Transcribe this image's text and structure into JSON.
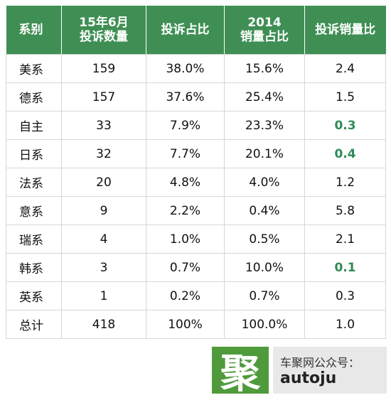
{
  "table": {
    "headers": [
      {
        "line1": "系别",
        "line2": ""
      },
      {
        "line1": "15年6月",
        "line2": "投诉数量"
      },
      {
        "line1": "投诉占比",
        "line2": ""
      },
      {
        "line1": "2014",
        "line2": "销量占比"
      },
      {
        "line1": "投诉销量比",
        "line2": ""
      }
    ],
    "rows": [
      {
        "name": "美系",
        "count": "159",
        "complaint_share": "38.0%",
        "sales_share": "15.6%",
        "ratio": "2.4",
        "highlight": false
      },
      {
        "name": "德系",
        "count": "157",
        "complaint_share": "37.6%",
        "sales_share": "25.4%",
        "ratio": "1.5",
        "highlight": false
      },
      {
        "name": "自主",
        "count": "33",
        "complaint_share": "7.9%",
        "sales_share": "23.3%",
        "ratio": "0.3",
        "highlight": true
      },
      {
        "name": "日系",
        "count": "32",
        "complaint_share": "7.7%",
        "sales_share": "20.1%",
        "ratio": "0.4",
        "highlight": true
      },
      {
        "name": "法系",
        "count": "20",
        "complaint_share": "4.8%",
        "sales_share": "4.0%",
        "ratio": "1.2",
        "highlight": false
      },
      {
        "name": "意系",
        "count": "9",
        "complaint_share": "2.2%",
        "sales_share": "0.4%",
        "ratio": "5.8",
        "highlight": false
      },
      {
        "name": "瑞系",
        "count": "4",
        "complaint_share": "1.0%",
        "sales_share": "0.5%",
        "ratio": "2.1",
        "highlight": false
      },
      {
        "name": "韩系",
        "count": "3",
        "complaint_share": "0.7%",
        "sales_share": "10.0%",
        "ratio": "0.1",
        "highlight": true
      },
      {
        "name": "英系",
        "count": "1",
        "complaint_share": "0.2%",
        "sales_share": "0.7%",
        "ratio": "0.3",
        "highlight": false
      },
      {
        "name": "总计",
        "count": "418",
        "complaint_share": "100%",
        "sales_share": "100.0%",
        "ratio": "1.0",
        "highlight": false
      }
    ]
  },
  "colors": {
    "header_bg": "#3f8f54",
    "highlight_text": "#2e8b57",
    "logo_bg": "#4f9b3c"
  },
  "brand": {
    "logo_char": "聚",
    "line1": "车聚网公众号：",
    "line2": "autoju"
  }
}
